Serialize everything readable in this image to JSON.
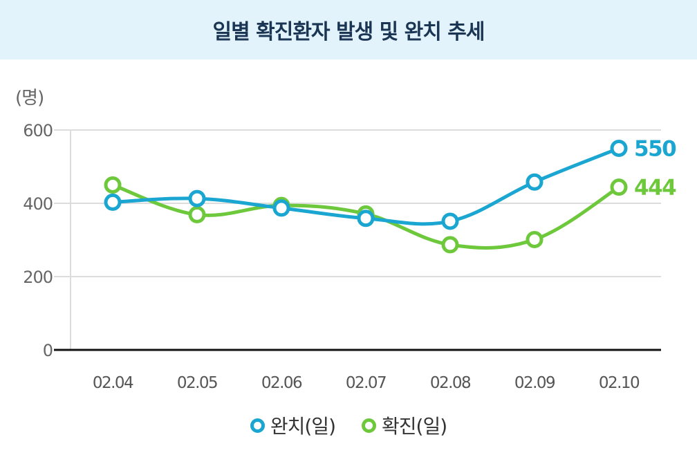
{
  "header": {
    "title": "일별 확진환자 발생 및 완치 추세"
  },
  "chart_data": {
    "type": "line",
    "title": "일별 확진환자 발생 및 완치 추세",
    "unit_label": "(명)",
    "categories": [
      "02.04",
      "02.05",
      "02.06",
      "02.07",
      "02.08",
      "02.09",
      "02.10"
    ],
    "yticks": [
      "0",
      "200",
      "400",
      "600"
    ],
    "ylim": [
      0,
      600
    ],
    "grid": true,
    "legend_position": "bottom",
    "series": [
      {
        "name": "완치(일)",
        "color": "#1aa6d1",
        "values": [
          403,
          413,
          387,
          359,
          351,
          458,
          550
        ],
        "end_label": "550"
      },
      {
        "name": "확진(일)",
        "color": "#6ec83c",
        "values": [
          450,
          369,
          394,
          371,
          287,
          301,
          444
        ],
        "end_label": "444"
      }
    ]
  }
}
